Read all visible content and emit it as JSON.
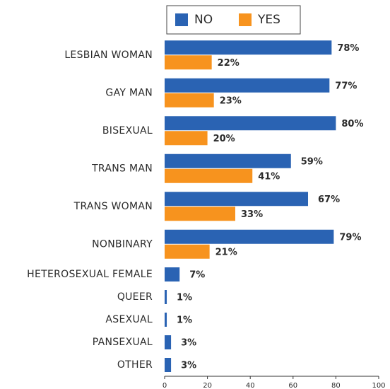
{
  "chart_data": {
    "type": "bar",
    "orientation": "horizontal",
    "categories": [
      "LESBIAN WOMAN",
      "GAY MAN",
      "BISEXUAL",
      "TRANS MAN",
      "TRANS WOMAN",
      "NONBINARY",
      "HETEROSEXUAL FEMALE",
      "QUEER",
      "ASEXUAL",
      "PANSEXUAL",
      "OTHER"
    ],
    "series": [
      {
        "name": "NO",
        "color": "#2a63b3",
        "values": [
          78,
          77,
          80,
          59,
          67,
          79,
          7,
          1,
          1,
          3,
          3
        ],
        "value_labels": [
          "78%",
          "77%",
          "80%",
          "59%",
          "67%",
          "79%",
          "7%",
          "1%",
          "1%",
          "3%",
          "3%"
        ]
      },
      {
        "name": "YES",
        "color": "#f7931e",
        "values": [
          22,
          23,
          20,
          41,
          33,
          21,
          null,
          null,
          null,
          null,
          null
        ],
        "value_labels": [
          "22%",
          "23%",
          "20%",
          "41%",
          "33%",
          "21%",
          null,
          null,
          null,
          null,
          null
        ]
      }
    ],
    "xlim": [
      0,
      100
    ],
    "xticks": [
      0,
      20,
      40,
      60,
      80,
      100
    ],
    "grid": false,
    "legend": "top"
  }
}
